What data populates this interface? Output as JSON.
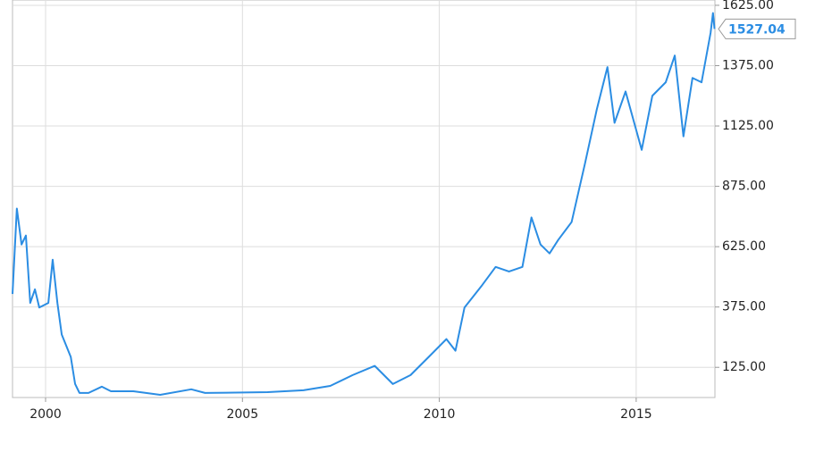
{
  "chart_data": {
    "type": "line",
    "x": [
      1999.16,
      1999.27,
      1999.39,
      1999.5,
      1999.61,
      1999.73,
      1999.84,
      2000.07,
      2000.18,
      2000.3,
      2000.41,
      2000.64,
      2000.75,
      2000.86,
      2001.09,
      2001.43,
      2001.66,
      2002.23,
      2002.91,
      2003.7,
      2004.05,
      2005.64,
      2006.55,
      2007.23,
      2007.8,
      2008.36,
      2008.82,
      2009.27,
      2009.73,
      2010.18,
      2010.41,
      2010.64,
      2011.09,
      2011.43,
      2011.77,
      2012.11,
      2012.34,
      2012.57,
      2012.8,
      2013.02,
      2013.36,
      2013.7,
      2014.0,
      2014.27,
      2014.45,
      2014.73,
      2014.95,
      2015.14,
      2015.41,
      2015.75,
      2015.98,
      2016.2,
      2016.43,
      2016.66,
      2016.89,
      2016.95,
      2016.99
    ],
    "series": [
      {
        "color": "#2b8de3",
        "values": [
          429,
          783,
          634,
          671,
          392,
          448,
          373,
          392,
          571,
          392,
          261,
          168,
          56,
          19,
          19,
          45,
          26,
          26,
          11,
          34,
          19,
          22,
          30,
          48,
          93,
          131,
          56,
          93,
          168,
          242,
          194,
          373,
          466,
          541,
          522,
          541,
          746,
          634,
          597,
          653,
          727,
          970,
          1194,
          1369,
          1138,
          1268,
          1138,
          1026,
          1250,
          1306,
          1417,
          1082,
          1324,
          1306,
          1511,
          1593,
          1527.04
        ]
      }
    ],
    "last_value": 1527.04,
    "last_value_label": "1527.04",
    "xlim": [
      1999.16,
      2017.0
    ],
    "xticks": [
      2000,
      2005,
      2010,
      2015
    ],
    "ylim": [
      0,
      1647
    ],
    "yticks": [
      {
        "value": 125,
        "label": "125.00"
      },
      {
        "value": 375,
        "label": "375.00"
      },
      {
        "value": 625,
        "label": "625.00"
      },
      {
        "value": 875,
        "label": "875.00"
      },
      {
        "value": 1125,
        "label": "1125.00"
      },
      {
        "value": 1375,
        "label": "1375.00"
      },
      {
        "value": 1625,
        "label": "1625.00"
      }
    ],
    "grid": true
  }
}
